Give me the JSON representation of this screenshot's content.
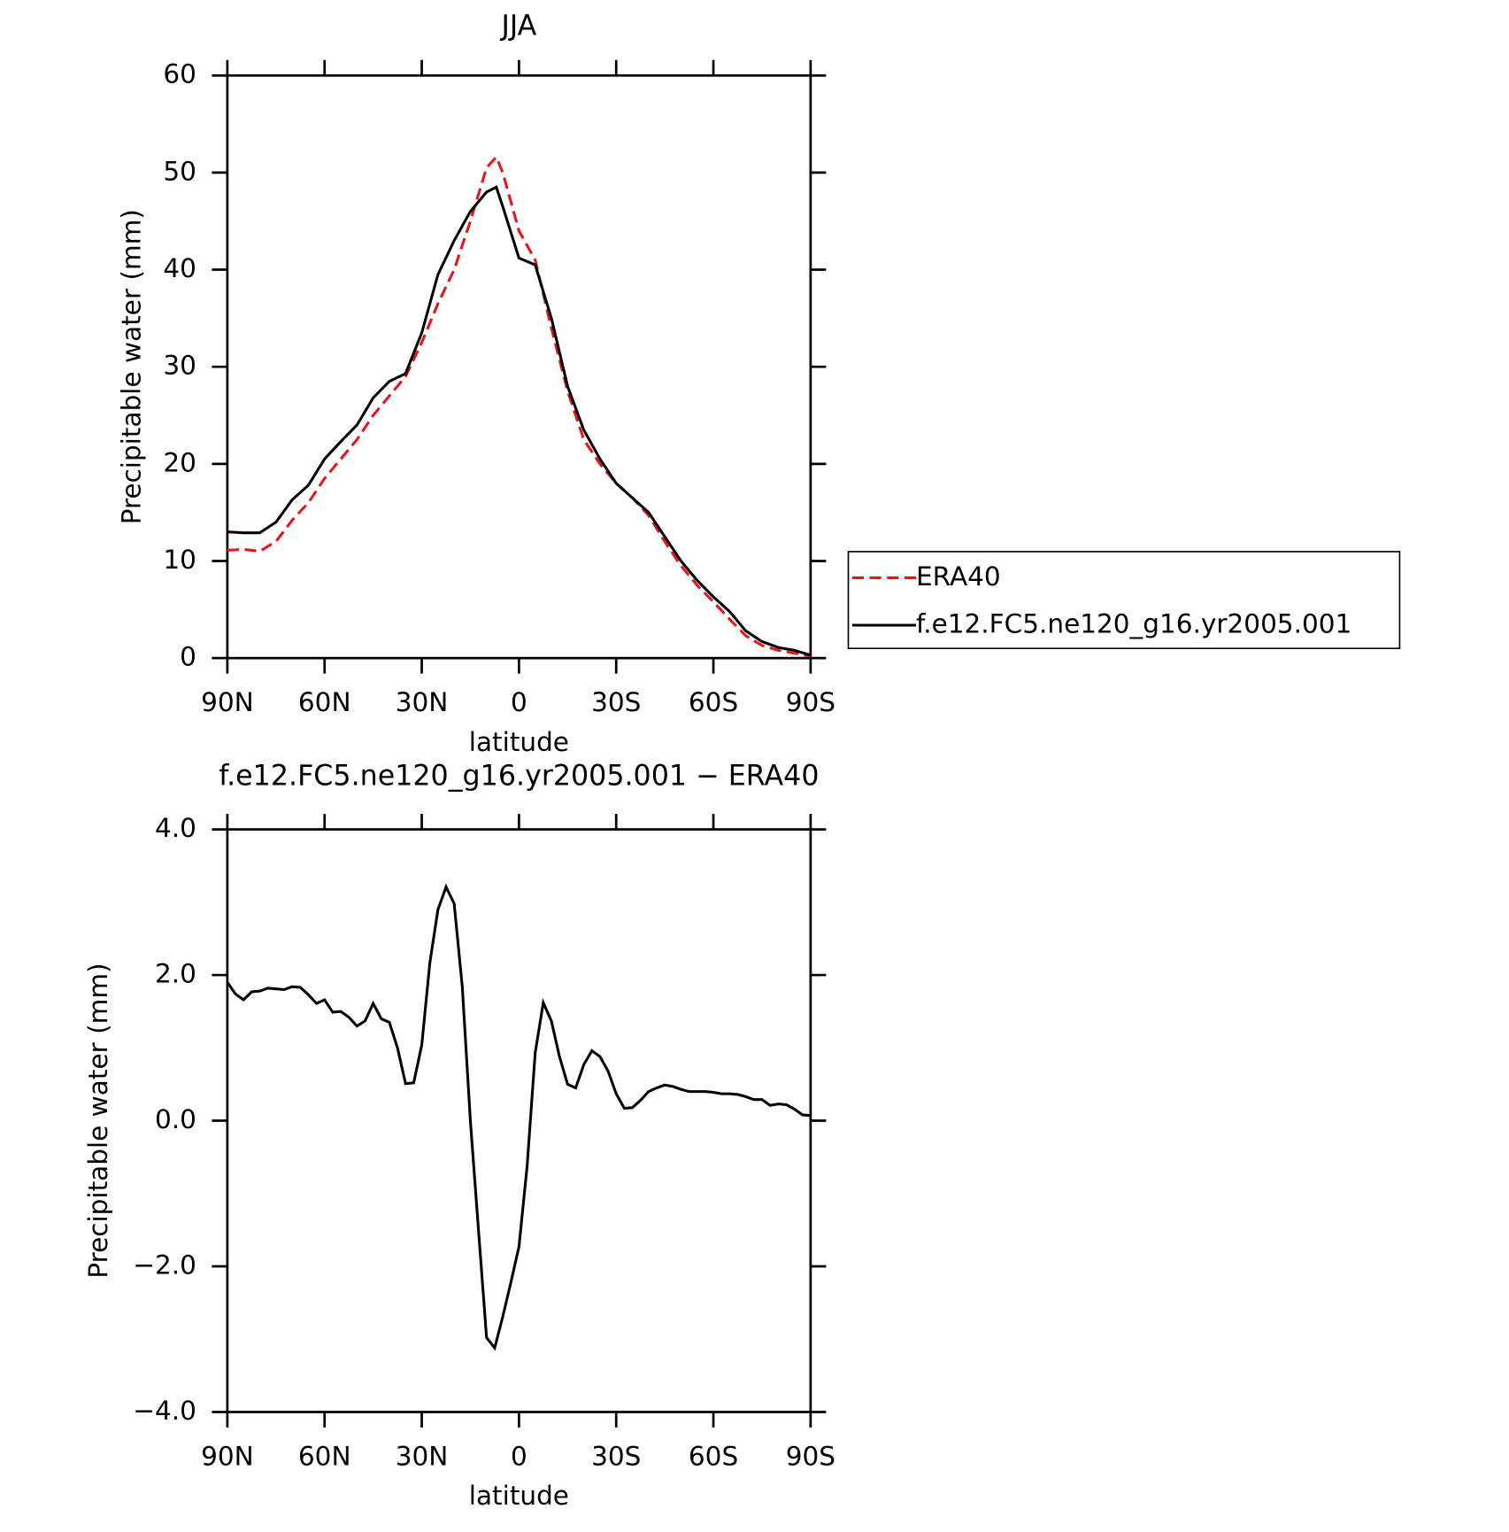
{
  "chart_data": [
    {
      "type": "line",
      "title": "JJA",
      "xlabel": "latitude",
      "ylabel": "Precipitable water (mm)",
      "x": [
        90,
        85,
        80,
        75,
        70,
        65,
        60,
        55,
        50,
        45,
        40,
        35,
        30,
        25,
        20,
        15,
        10,
        7,
        5,
        0,
        -5,
        -10,
        -15,
        -20,
        -25,
        -30,
        -35,
        -40,
        -45,
        -50,
        -55,
        -60,
        -65,
        -70,
        -75,
        -80,
        -85,
        -90
      ],
      "series": [
        {
          "name": "ERA40",
          "color": "#e8141b",
          "dash": true,
          "values": [
            11.1,
            11.2,
            11.0,
            12.0,
            14.2,
            16.0,
            18.5,
            20.5,
            22.5,
            25.0,
            27.0,
            29.0,
            32.5,
            36.5,
            40.0,
            45.0,
            50.5,
            51.6,
            50,
            44,
            41,
            34,
            27.5,
            22.5,
            20,
            18,
            16.5,
            14.7,
            12.0,
            9.5,
            7.5,
            5.8,
            4.0,
            2.3,
            1.3,
            0.8,
            0.5,
            0.2
          ]
        },
        {
          "name": "f.e12.FC5.ne120_g16.yr2005.001",
          "color": "#000000",
          "dash": false,
          "values": [
            13.0,
            12.9,
            12.9,
            14.0,
            16.3,
            17.8,
            20.5,
            22.3,
            24.0,
            26.8,
            28.5,
            29.3,
            33.5,
            39.5,
            43.0,
            46.0,
            48.0,
            48.5,
            46.5,
            41.2,
            40.5,
            35,
            28,
            23.5,
            20.5,
            18,
            16.5,
            15,
            12.5,
            10,
            8,
            6.3,
            4.8,
            2.8,
            1.7,
            1.1,
            0.8,
            0.3
          ]
        }
      ],
      "xlim": [
        90,
        -90
      ],
      "xticks": [
        {
          "value": 90,
          "label": "90N"
        },
        {
          "value": 60,
          "label": "60N"
        },
        {
          "value": 30,
          "label": "30N"
        },
        0,
        {
          "value": -30,
          "label": "30S"
        },
        {
          "value": -60,
          "label": "60S"
        },
        {
          "value": -90,
          "label": "90S"
        }
      ],
      "ylim": [
        0,
        60
      ],
      "yticks": [
        0,
        10,
        20,
        30,
        40,
        50,
        60
      ],
      "grid": false,
      "legend": "right"
    },
    {
      "type": "line",
      "title": "f.e12.FC5.ne120_g16.yr2005.001 − ERA40",
      "xlabel": "latitude",
      "ylabel": "Precipitable water (mm)",
      "x": [
        90,
        87.5,
        85,
        82.5,
        80,
        77.5,
        75,
        72.5,
        70,
        67.5,
        65,
        62.5,
        60,
        57.5,
        55,
        52.5,
        50,
        47.5,
        45,
        42.5,
        40,
        37.5,
        35,
        32.5,
        30,
        27.5,
        25,
        22.5,
        20,
        17.5,
        15,
        12.5,
        10,
        7.5,
        5,
        2.5,
        0,
        -2.5,
        -5,
        -7.5,
        -10,
        -12.5,
        -15,
        -17.5,
        -20,
        -22.5,
        -25,
        -27.5,
        -30,
        -32.5,
        -35,
        -37.5,
        -40,
        -42.5,
        -45,
        -47.5,
        -50,
        -52.5,
        -55,
        -57.5,
        -60,
        -62.5,
        -65,
        -67.5,
        -70,
        -72.5,
        -75,
        -77.5,
        -80,
        -82.5,
        -85,
        -87.5,
        -90
      ],
      "values": [
        1.9,
        1.74,
        1.66,
        1.77,
        1.78,
        1.82,
        1.81,
        1.8,
        1.84,
        1.83,
        1.73,
        1.61,
        1.66,
        1.49,
        1.5,
        1.42,
        1.3,
        1.37,
        1.61,
        1.4,
        1.35,
        1.0,
        0.51,
        0.52,
        1.04,
        2.17,
        2.9,
        3.21,
        2.98,
        1.84,
        0,
        -1.5,
        -2.98,
        -3.12,
        -2.69,
        -2.22,
        -1.73,
        -0.63,
        0.93,
        1.62,
        1.37,
        0.88,
        0.5,
        0.45,
        0.77,
        0.96,
        0.88,
        0.68,
        0.37,
        0.17,
        0.18,
        0.28,
        0.4,
        0.45,
        0.49,
        0.47,
        0.43,
        0.4,
        0.4,
        0.4,
        0.39,
        0.37,
        0.37,
        0.36,
        0.33,
        0.29,
        0.29,
        0.21,
        0.23,
        0.22,
        0.16,
        0.08,
        0.07
      ],
      "color": "#000000",
      "xlim": [
        90,
        -90
      ],
      "xticks": [
        {
          "value": 90,
          "label": "90N"
        },
        {
          "value": 60,
          "label": "60N"
        },
        {
          "value": 30,
          "label": "30N"
        },
        0,
        {
          "value": -30,
          "label": "30S"
        },
        {
          "value": -60,
          "label": "60S"
        },
        {
          "value": -90,
          "label": "90S"
        }
      ],
      "ylim": [
        -4,
        4
      ],
      "yticks": [
        {
          "value": -4,
          "label": "−4.0"
        },
        {
          "value": -2,
          "label": "−2.0"
        },
        {
          "value": 0,
          "label": "0.0"
        },
        {
          "value": 2,
          "label": "2.0"
        },
        {
          "value": 4,
          "label": "4.0"
        }
      ],
      "grid": false
    }
  ]
}
